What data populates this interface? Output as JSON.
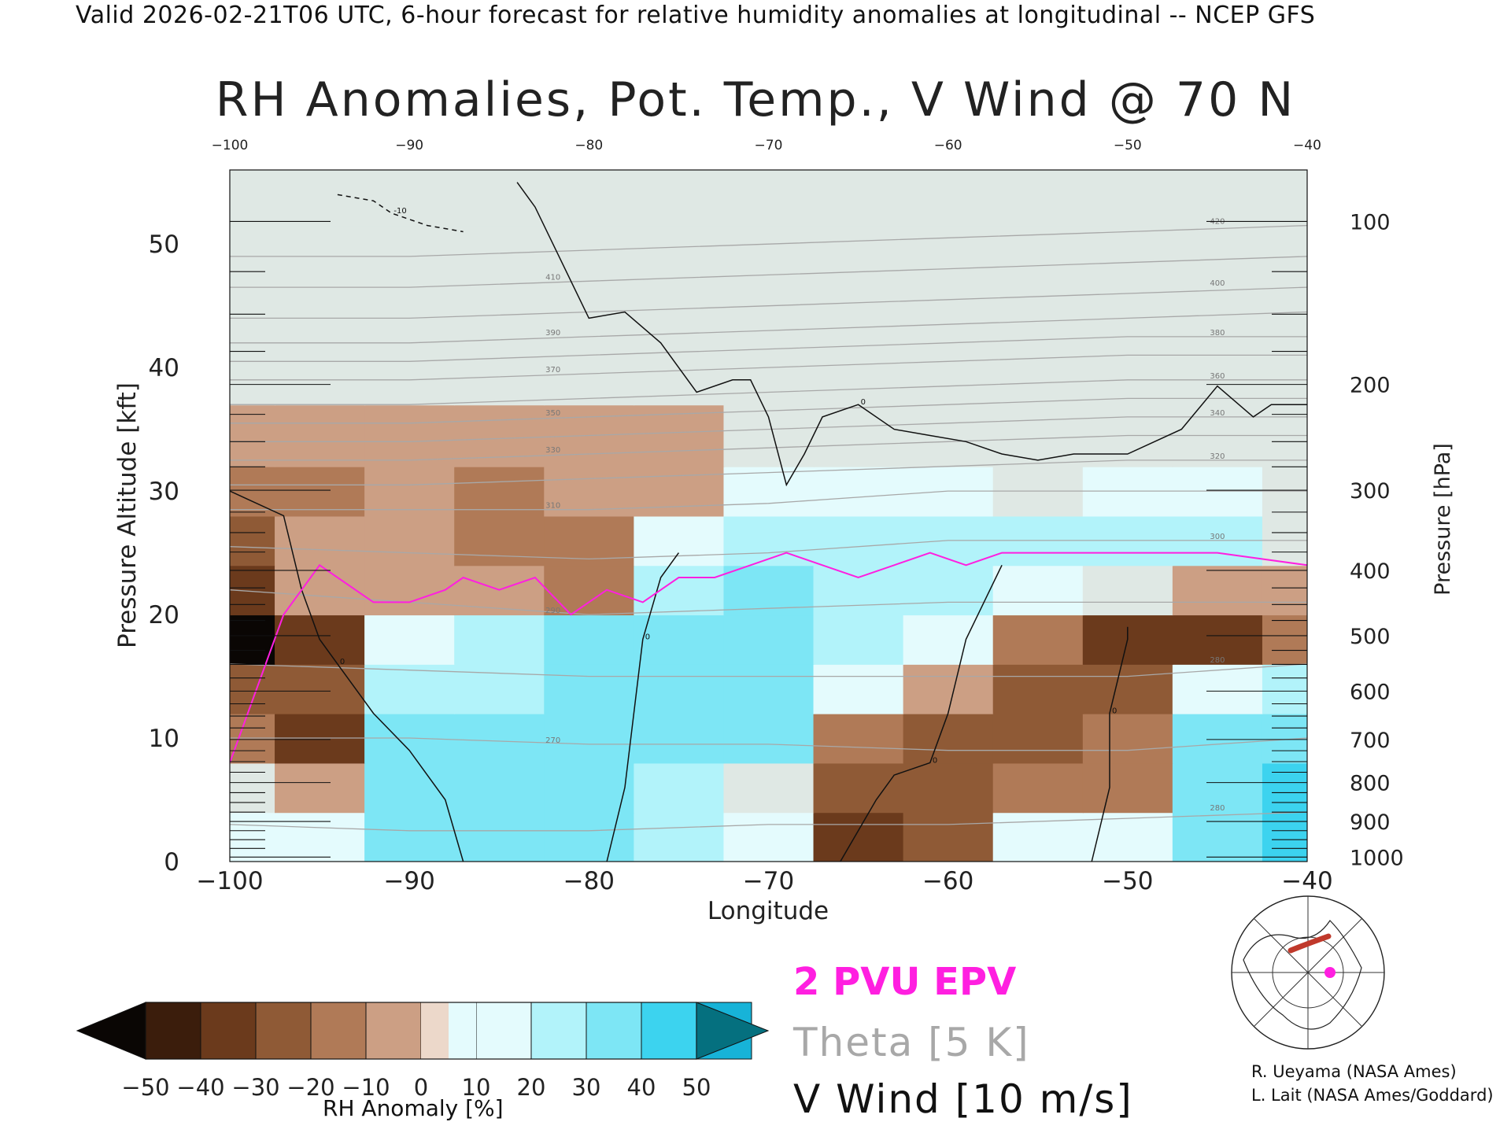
{
  "header": "Valid 2026-02-21T06 UTC, 6-hour forecast for relative humidity anomalies at longitudinal -- NCEP GFS",
  "legend": {
    "epv": "2 PVU EPV",
    "theta": "Theta [5 K]",
    "vwind": "V Wind [10 m/s]"
  },
  "credits": {
    "line1": "R. Ueyama (NASA Ames)",
    "line2": "L. Lait (NASA Ames/Goddard)"
  },
  "colors": {
    "epv": "#ff1fe0",
    "theta": "#a8a8a8",
    "vwind": "#111111",
    "dry_max": "#0a0604",
    "wet_max": "#05707f"
  },
  "chart_data": {
    "type": "heatmap",
    "title": "RH Anomalies, Pot. Temp., V Wind @ 70 N",
    "xlabel": "Longitude",
    "ylabel": "Pressure Altitude [kft]",
    "y2label": "Pressure [hPa]",
    "xlim": [
      -100,
      -40
    ],
    "ylim": [
      0,
      56
    ],
    "x_ticks": [
      -100,
      -90,
      -80,
      -70,
      -60,
      -50,
      -40
    ],
    "x_tick_labels": [
      "−100",
      "−90",
      "−80",
      "−70",
      "−60",
      "−50",
      "−40"
    ],
    "top_tick_labels": [
      "−100",
      "−90",
      "−80",
      "−70",
      "−60",
      "−50",
      "−40"
    ],
    "y_ticks": [
      0,
      10,
      20,
      30,
      40,
      50
    ],
    "pressure_ticks": [
      100,
      200,
      300,
      400,
      500,
      600,
      700,
      800,
      900,
      1000
    ],
    "colorbar": {
      "label": "RH Anomaly [%]",
      "ticks": [
        "−50",
        "−40",
        "−30",
        "−20",
        "−10",
        "0",
        "10",
        "20",
        "30",
        "40",
        "50"
      ],
      "colors": [
        "#3b1d0c",
        "#6b3a1c",
        "#8f5a36",
        "#b07a57",
        "#cc9f84",
        "#ecd8ca",
        "#e4fbfd",
        "#b2f3fa",
        "#7de6f5",
        "#3cd3ef",
        "#17b3d8"
      ]
    },
    "rh_anomaly_grid": {
      "lon": [
        -100,
        -95,
        -90,
        -85,
        -80,
        -75,
        -70,
        -65,
        -60,
        -55,
        -50,
        -45,
        -40
      ],
      "alt_kft": [
        2,
        6,
        10,
        14,
        18,
        22,
        26,
        30,
        34,
        40,
        48,
        55
      ],
      "values": [
        [
          10,
          10,
          30,
          30,
          30,
          20,
          10,
          -40,
          -30,
          10,
          10,
          30,
          40
        ],
        [
          0,
          -10,
          30,
          30,
          30,
          20,
          0,
          -30,
          -30,
          -20,
          -20,
          30,
          40
        ],
        [
          -20,
          -40,
          30,
          30,
          30,
          30,
          30,
          -20,
          -30,
          -30,
          -20,
          30,
          30
        ],
        [
          -30,
          -30,
          20,
          20,
          30,
          30,
          30,
          10,
          -10,
          -30,
          -30,
          10,
          20
        ],
        [
          -50,
          -40,
          10,
          20,
          30,
          30,
          30,
          20,
          10,
          -20,
          -40,
          -40,
          -20
        ],
        [
          -40,
          -10,
          -10,
          -10,
          -20,
          20,
          30,
          20,
          20,
          10,
          0,
          -10,
          -10
        ],
        [
          -30,
          -10,
          -10,
          -20,
          -20,
          10,
          20,
          20,
          20,
          20,
          20,
          20,
          0
        ],
        [
          -20,
          -20,
          -10,
          -20,
          -10,
          -10,
          10,
          10,
          10,
          0,
          10,
          10,
          0
        ],
        [
          -10,
          -10,
          -10,
          -10,
          -10,
          -10,
          -5,
          5,
          5,
          0,
          5,
          5,
          0
        ],
        [
          -5,
          -5,
          -5,
          -5,
          -5,
          -5,
          -5,
          -5,
          -5,
          -5,
          -5,
          -5,
          -5
        ],
        [
          0,
          0,
          0,
          0,
          0,
          0,
          0,
          0,
          0,
          0,
          0,
          0,
          0
        ],
        [
          0,
          0,
          0,
          0,
          0,
          0,
          0,
          0,
          0,
          0,
          0,
          0,
          0
        ]
      ]
    },
    "epv_2pvu_line": {
      "lon": [
        -100,
        -97,
        -95,
        -94,
        -92,
        -90,
        -88,
        -87,
        -85,
        -83,
        -81,
        -79,
        -77,
        -75,
        -73,
        -71,
        -69,
        -67,
        -65,
        -63,
        -61,
        -59,
        -57,
        -55,
        -53,
        -50,
        -45,
        -40
      ],
      "alt_kft": [
        8,
        20,
        24,
        23,
        21,
        21,
        22,
        23,
        22,
        23,
        20,
        22,
        21,
        23,
        23,
        24,
        25,
        24,
        23,
        24,
        25,
        24,
        25,
        25,
        25,
        25,
        25,
        24
      ]
    },
    "theta_contours": [
      {
        "label": "280",
        "lon": [
          -100,
          -90,
          -80,
          -70,
          -60,
          -50,
          -40
        ],
        "alt_kft": [
          3,
          2.5,
          2.5,
          3,
          3,
          3.5,
          4
        ]
      },
      {
        "label": "270",
        "lon": [
          -100,
          -90,
          -80,
          -70,
          -60,
          -50,
          -40
        ],
        "alt_kft": [
          10,
          10,
          9.5,
          9.5,
          9,
          9,
          10
        ]
      },
      {
        "label": "280",
        "lon": [
          -100,
          -90,
          -80,
          -70,
          -60,
          -50,
          -40
        ],
        "alt_kft": [
          16,
          15.5,
          15,
          15,
          15,
          15,
          16
        ]
      },
      {
        "label": "290",
        "lon": [
          -100,
          -90,
          -80,
          -70,
          -60,
          -50,
          -40
        ],
        "alt_kft": [
          22,
          21,
          20,
          20.5,
          21,
          21,
          21
        ]
      },
      {
        "label": "300",
        "lon": [
          -100,
          -90,
          -80,
          -70,
          -60,
          -50,
          -40
        ],
        "alt_kft": [
          25.5,
          25,
          24.5,
          25,
          26,
          26,
          26
        ]
      },
      {
        "label": "310",
        "lon": [
          -100,
          -90,
          -80,
          -70,
          -60,
          -50,
          -40
        ],
        "alt_kft": [
          28.5,
          28.5,
          28.5,
          29,
          30,
          30,
          30
        ]
      },
      {
        "label": "320",
        "lon": [
          -100,
          -90,
          -80,
          -70,
          -60,
          -50,
          -40
        ],
        "alt_kft": [
          30.5,
          30.5,
          31,
          31.5,
          32,
          32.5,
          32.5
        ]
      },
      {
        "label": "330",
        "lon": [
          -100,
          -90,
          -80,
          -70,
          -60,
          -50,
          -40
        ],
        "alt_kft": [
          32.5,
          32.5,
          33,
          33.5,
          34,
          34.5,
          34.5
        ]
      },
      {
        "label": "340",
        "lon": [
          -100,
          -90,
          -80,
          -70,
          -60,
          -50,
          -40
        ],
        "alt_kft": [
          34,
          34,
          34.5,
          35,
          35.5,
          36,
          36
        ]
      },
      {
        "label": "350",
        "lon": [
          -100,
          -90,
          -80,
          -70,
          -60,
          -50,
          -40
        ],
        "alt_kft": [
          35.5,
          35.5,
          36,
          36.5,
          37,
          37.5,
          37.5
        ]
      },
      {
        "label": "360",
        "lon": [
          -100,
          -90,
          -80,
          -70,
          -60,
          -50,
          -40
        ],
        "alt_kft": [
          37,
          37,
          37.5,
          38,
          38.5,
          39,
          39
        ]
      },
      {
        "label": "370",
        "lon": [
          -100,
          -90,
          -80,
          -70,
          -60,
          -50,
          -40
        ],
        "alt_kft": [
          39,
          39,
          39.5,
          40,
          40.5,
          41,
          41
        ]
      },
      {
        "label": "380",
        "lon": [
          -100,
          -90,
          -80,
          -70,
          -60,
          -50,
          -40
        ],
        "alt_kft": [
          40.5,
          40.5,
          41,
          41.5,
          42,
          42.5,
          42.5
        ]
      },
      {
        "label": "390",
        "lon": [
          -100,
          -90,
          -80,
          -70,
          -60,
          -50,
          -40
        ],
        "alt_kft": [
          42,
          42,
          42.5,
          43,
          43.5,
          44,
          44.5
        ]
      },
      {
        "label": "400",
        "lon": [
          -100,
          -90,
          -80,
          -70,
          -60,
          -50,
          -40
        ],
        "alt_kft": [
          44,
          44,
          44.5,
          45,
          45.5,
          46,
          46.5
        ]
      },
      {
        "label": "410",
        "lon": [
          -100,
          -90,
          -80,
          -70,
          -60,
          -50,
          -40
        ],
        "alt_kft": [
          46.5,
          46.5,
          47,
          47.5,
          48,
          48.5,
          49
        ]
      },
      {
        "label": "420",
        "lon": [
          -100,
          -90,
          -80,
          -70,
          -60,
          -50,
          -40
        ],
        "alt_kft": [
          49,
          49,
          49.5,
          50,
          50.5,
          51,
          51.5
        ]
      }
    ],
    "vwind_contours": [
      {
        "label": "0",
        "lon": [
          -84,
          -83,
          -82,
          -80,
          -78,
          -76,
          -74,
          -72,
          -71,
          -70,
          -69,
          -68,
          -67,
          -65,
          -63,
          -61,
          -59,
          -57,
          -55,
          -53,
          -50,
          -47,
          -45,
          -43,
          -42,
          -40
        ],
        "alt_kft": [
          55,
          53,
          50,
          44,
          44.5,
          42,
          38,
          39,
          39,
          36,
          30.5,
          33,
          36,
          37,
          35,
          34.5,
          34,
          33,
          32.5,
          33,
          33,
          35,
          38.5,
          36,
          37,
          37
        ]
      },
      {
        "label": "0",
        "lon": [
          -100,
          -97,
          -96,
          -95,
          -94,
          -92,
          -90,
          -88,
          -87
        ],
        "alt_kft": [
          30,
          28,
          22,
          18,
          16,
          12,
          9,
          5,
          0
        ]
      },
      {
        "label": "0",
        "lon": [
          -79,
          -78,
          -77,
          -76,
          -75
        ],
        "alt_kft": [
          0,
          6,
          18,
          23,
          25
        ]
      },
      {
        "label": "0",
        "lon": [
          -66,
          -64,
          -63,
          -61,
          -60,
          -59,
          -57
        ],
        "alt_kft": [
          0,
          5,
          7,
          8,
          12,
          18,
          24
        ]
      },
      {
        "label": "0",
        "lon": [
          -52,
          -51,
          -51,
          -50,
          -50
        ],
        "alt_kft": [
          0,
          6,
          12,
          18,
          19
        ]
      },
      {
        "label": "-10",
        "lon": [
          -94,
          -92,
          -91,
          -89,
          -87
        ],
        "alt_kft": [
          54,
          53.5,
          52.5,
          51.5,
          51
        ]
      }
    ]
  }
}
